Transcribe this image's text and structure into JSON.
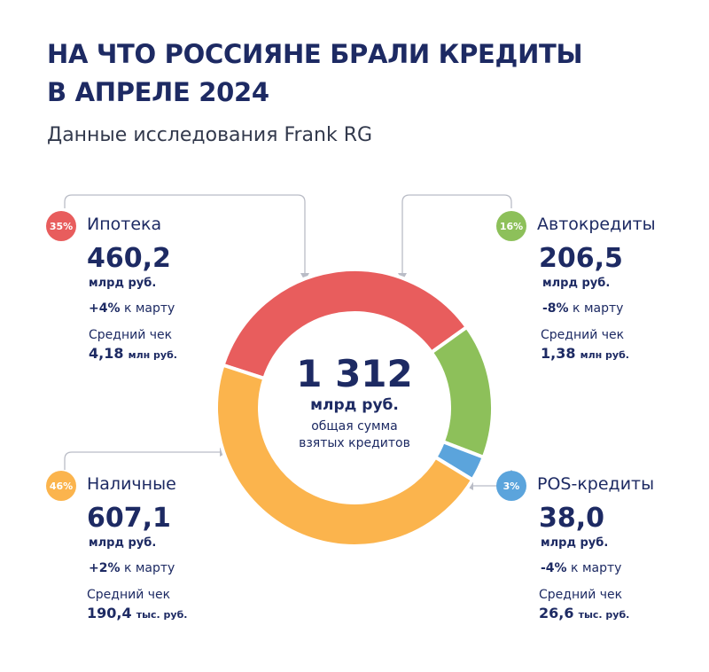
{
  "header": {
    "title_line1": "НА ЧТО РОССИЯНЕ БРАЛИ КРЕДИТЫ",
    "title_line2": "В АПРЕЛЕ 2024",
    "subtitle": "Данные исследования Frank RG"
  },
  "center": {
    "total": "1 312",
    "unit": "млрд руб.",
    "caption_line1": "общая сумма",
    "caption_line2": "взятых кредитов"
  },
  "segments": {
    "mortgage": {
      "badge": "35%",
      "name": "Ипотека",
      "amount": "460,2",
      "unit": "млрд руб.",
      "change_value": "+4%",
      "change_text": "к марту",
      "avg_label": "Средний чек",
      "avg_value": "4,18",
      "avg_unit": "млн руб.",
      "color": "#e85d5d"
    },
    "auto": {
      "badge": "16%",
      "name": "Автокредиты",
      "amount": "206,5",
      "unit": "млрд руб.",
      "change_value": "-8%",
      "change_text": "к марту",
      "avg_label": "Средний чек",
      "avg_value": "1,38",
      "avg_unit": "млн руб.",
      "color": "#8dc05a"
    },
    "cash": {
      "badge": "46%",
      "name": "Наличные",
      "amount": "607,1",
      "unit": "млрд руб.",
      "change_value": "+2%",
      "change_text": "к марту",
      "avg_label": "Средний чек",
      "avg_value": "190,4",
      "avg_unit": "тыс. руб.",
      "color": "#fbb44d"
    },
    "pos": {
      "badge": "3%",
      "name": "POS-кредиты",
      "amount": "38,0",
      "unit": "млрд руб.",
      "change_value": "-4%",
      "change_text": "к марту",
      "avg_label": "Средний чек",
      "avg_value": "26,6",
      "avg_unit": "тыс. руб.",
      "color": "#5ba4dc"
    }
  },
  "chart_data": {
    "type": "pie",
    "categories": [
      "Ипотека",
      "Автокредиты",
      "POS-кредиты",
      "Наличные"
    ],
    "values": [
      460.2,
      206.5,
      38.0,
      607.1
    ],
    "percent_labels": [
      "35%",
      "16%",
      "3%",
      "46%"
    ],
    "colors": [
      "#e85d5d",
      "#8dc05a",
      "#5ba4dc",
      "#fbb44d"
    ],
    "total": 1312
  }
}
